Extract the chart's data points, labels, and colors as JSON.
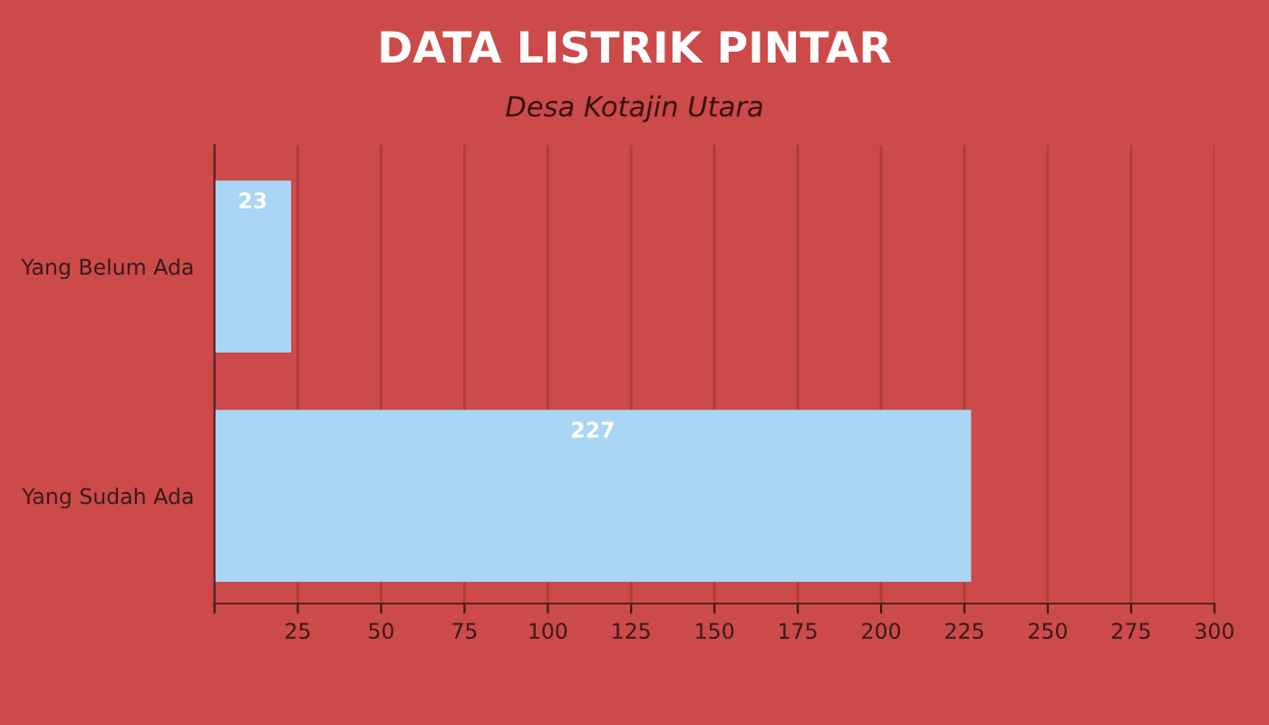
{
  "chart_data": {
    "type": "bar",
    "orientation": "horizontal",
    "title": "DATA LISTRIK PINTAR",
    "subtitle": "Desa Kotajin Utara",
    "categories": [
      "Yang Belum Ada",
      "Yang Sudah Ada"
    ],
    "values": [
      23,
      227
    ],
    "color": "#a9d6f5",
    "xlim": [
      0,
      300
    ],
    "xticks": [
      {
        "value": 0,
        "label": null
      },
      25,
      50,
      75,
      100,
      125,
      150,
      175,
      200,
      225,
      250,
      275,
      300
    ],
    "grid": "x",
    "data_labels": true
  }
}
